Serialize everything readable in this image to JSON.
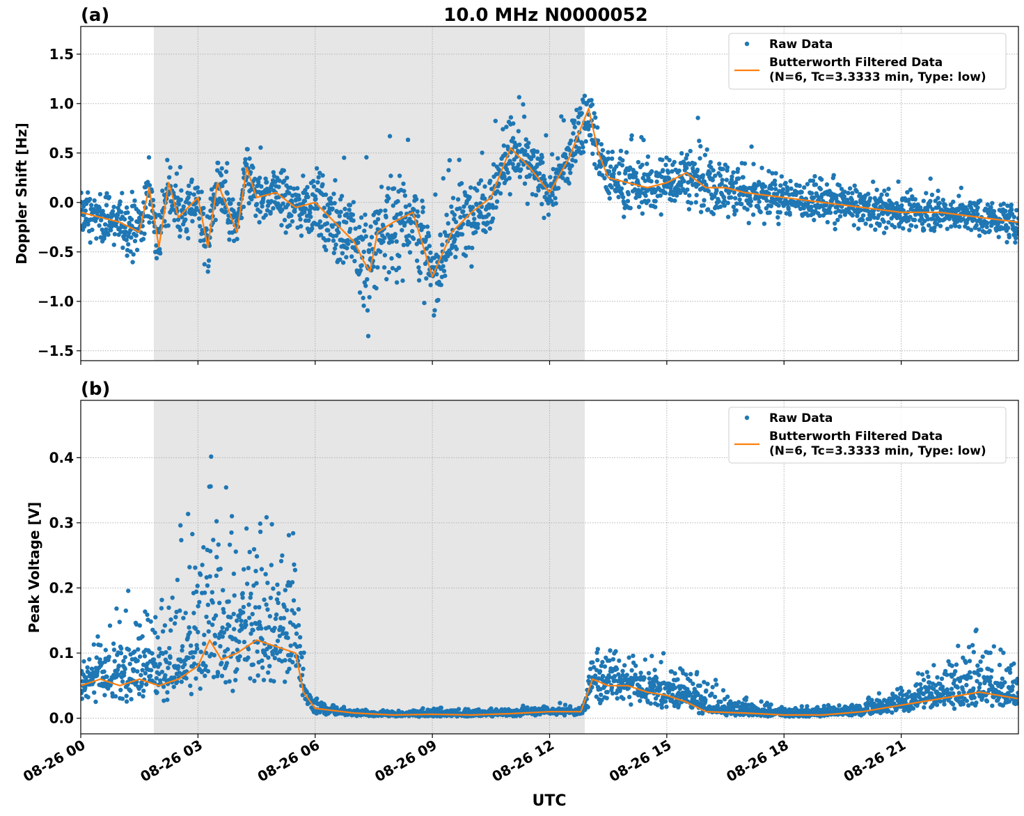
{
  "figure": {
    "title": "10.0 MHz N0000052",
    "xlabel": "UTC",
    "shade_label": ""
  },
  "colors": {
    "raw": "#1f77b4",
    "filtered": "#ff7f0e",
    "shade": "#e6e6e6",
    "grid": "#b0b0b0"
  },
  "legend": {
    "raw_label": "Raw Data",
    "filtered_label_line1": "Butterworth Filtered Data",
    "filtered_label_line2": "(N=6, Tc=3.3333 min, Type: low)"
  },
  "chart_data": [
    {
      "panel_label": "(a)",
      "type": "scatter",
      "ylabel": "Doppler Shift [Hz]",
      "xlim_hours": [
        0,
        24
      ],
      "ylim": [
        -1.6,
        1.78
      ],
      "yticks": [
        -1.5,
        -1.0,
        -0.5,
        0.0,
        0.5,
        1.0,
        1.5
      ],
      "ytick_labels": [
        "−1.5",
        "−1.0",
        "−0.5",
        "0.0",
        "0.5",
        "1.0",
        "1.5"
      ],
      "xtick_hours": [
        0,
        3,
        6,
        9,
        12,
        15,
        18,
        21
      ],
      "xtick_labels": [
        "08-26 00",
        "08-26 03",
        "08-26 06",
        "08-26 09",
        "08-26 12",
        "08-26 15",
        "08-26 18",
        "08-26 21"
      ],
      "shaded_hours": [
        1.87,
        12.9
      ],
      "legend_position": "upper-right",
      "grid": true,
      "series": [
        {
          "name": "Butterworth Filtered Data",
          "kind": "line",
          "x_hours": [
            0,
            0.5,
            1.0,
            1.5,
            1.75,
            2.0,
            2.25,
            2.5,
            3.0,
            3.25,
            3.5,
            4.0,
            4.25,
            4.5,
            5.0,
            5.5,
            6.0,
            6.5,
            7.0,
            7.25,
            7.4,
            7.6,
            8.0,
            8.5,
            9.0,
            9.5,
            10.0,
            10.5,
            11.0,
            11.5,
            12.0,
            12.5,
            13.0,
            13.25,
            13.5,
            14.0,
            14.5,
            15.0,
            15.5,
            16.0,
            16.5,
            17.0,
            18.0,
            19.0,
            20.0,
            21.0,
            22.0,
            23.0,
            24.0
          ],
          "y": [
            -0.1,
            -0.15,
            -0.2,
            -0.3,
            0.15,
            -0.45,
            0.2,
            -0.15,
            0.05,
            -0.45,
            0.2,
            -0.3,
            0.35,
            0.05,
            0.1,
            -0.05,
            0.0,
            -0.2,
            -0.4,
            -0.6,
            -0.7,
            -0.3,
            -0.2,
            -0.1,
            -0.75,
            -0.3,
            -0.1,
            0.05,
            0.55,
            0.35,
            0.1,
            0.45,
            0.95,
            0.5,
            0.25,
            0.2,
            0.15,
            0.2,
            0.3,
            0.15,
            0.15,
            0.1,
            0.05,
            0.0,
            -0.05,
            -0.1,
            -0.1,
            -0.15,
            -0.2
          ]
        },
        {
          "name": "Raw Data",
          "kind": "points",
          "note_hours": [
            0,
            24
          ],
          "envelope_x_hours": [
            0,
            2.0,
            3.0,
            4.0,
            5.0,
            6.0,
            7.0,
            7.3,
            8.0,
            8.5,
            9.0,
            10.0,
            11.0,
            12.0,
            12.9,
            13.1,
            14.0,
            15.0,
            16.0,
            17.0,
            18.0,
            19.0,
            20.0,
            22.0,
            24.0
          ],
          "envelope_spread": [
            0.22,
            0.35,
            0.3,
            0.3,
            0.3,
            0.35,
            0.5,
            0.6,
            0.55,
            0.55,
            0.45,
            0.4,
            0.35,
            0.3,
            0.3,
            0.3,
            0.3,
            0.3,
            0.35,
            0.3,
            0.22,
            0.2,
            0.2,
            0.18,
            0.18
          ]
        }
      ]
    },
    {
      "panel_label": "(b)",
      "type": "scatter",
      "ylabel": "Peak Voltage [V]",
      "xlim_hours": [
        0,
        24
      ],
      "ylim": [
        -0.024,
        0.488
      ],
      "yticks": [
        0.0,
        0.1,
        0.2,
        0.3,
        0.4
      ],
      "ytick_labels": [
        "0.0",
        "0.1",
        "0.2",
        "0.3",
        "0.4"
      ],
      "xtick_hours": [
        0,
        3,
        6,
        9,
        12,
        15,
        18,
        21
      ],
      "xtick_labels": [
        "08-26 00",
        "08-26 03",
        "08-26 06",
        "08-26 09",
        "08-26 12",
        "08-26 15",
        "08-26 18",
        "08-26 21"
      ],
      "shaded_hours": [
        1.87,
        12.9
      ],
      "legend_position": "upper-right",
      "grid": true,
      "series": [
        {
          "name": "Butterworth Filtered Data",
          "kind": "line",
          "x_hours": [
            0,
            0.5,
            1.0,
            1.5,
            2.0,
            2.5,
            3.0,
            3.3,
            3.6,
            4.0,
            4.5,
            5.0,
            5.5,
            5.7,
            6.0,
            7.0,
            8.0,
            9.0,
            10.0,
            11.0,
            12.0,
            12.8,
            13.1,
            13.5,
            14.0,
            14.5,
            15.0,
            15.5,
            16.0,
            17.0,
            18.0,
            19.0,
            20.0,
            21.0,
            22.0,
            23.0,
            24.0
          ],
          "y": [
            0.05,
            0.06,
            0.05,
            0.06,
            0.05,
            0.06,
            0.08,
            0.12,
            0.09,
            0.1,
            0.12,
            0.11,
            0.1,
            0.04,
            0.015,
            0.008,
            0.005,
            0.006,
            0.005,
            0.007,
            0.01,
            0.01,
            0.06,
            0.05,
            0.05,
            0.04,
            0.035,
            0.025,
            0.01,
            0.008,
            0.005,
            0.005,
            0.01,
            0.02,
            0.03,
            0.04,
            0.03
          ]
        },
        {
          "name": "Raw Data",
          "kind": "points",
          "envelope_x_hours": [
            0,
            1.0,
            2.0,
            2.5,
            3.0,
            3.5,
            4.0,
            4.5,
            5.0,
            5.5,
            5.8,
            6.5,
            8.0,
            9.0,
            10.0,
            11.0,
            12.0,
            12.9,
            13.1,
            14.0,
            15.0,
            16.0,
            16.5,
            18.0,
            19.0,
            20.0,
            21.0,
            22.0,
            23.0,
            24.0
          ],
          "envelope_top": [
            0.12,
            0.2,
            0.2,
            0.3,
            0.35,
            0.45,
            0.3,
            0.4,
            0.3,
            0.3,
            0.05,
            0.02,
            0.012,
            0.018,
            0.015,
            0.018,
            0.025,
            0.02,
            0.15,
            0.12,
            0.1,
            0.08,
            0.04,
            0.02,
            0.02,
            0.03,
            0.06,
            0.1,
            0.15,
            0.09
          ]
        }
      ]
    }
  ]
}
